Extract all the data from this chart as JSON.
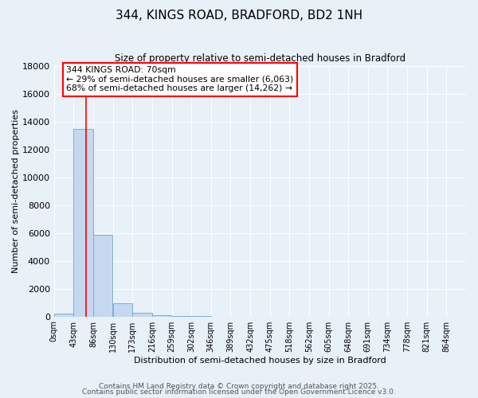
{
  "title": "344, KINGS ROAD, BRADFORD, BD2 1NH",
  "subtitle": "Size of property relative to semi-detached houses in Bradford",
  "xlabel": "Distribution of semi-detached houses by size in Bradford",
  "ylabel": "Number of semi-detached properties",
  "bar_labels": [
    "0sqm",
    "43sqm",
    "86sqm",
    "130sqm",
    "173sqm",
    "216sqm",
    "259sqm",
    "302sqm",
    "346sqm",
    "389sqm",
    "432sqm",
    "475sqm",
    "518sqm",
    "562sqm",
    "605sqm",
    "648sqm",
    "691sqm",
    "734sqm",
    "778sqm",
    "821sqm",
    "864sqm"
  ],
  "bar_values": [
    200,
    13500,
    5900,
    950,
    280,
    100,
    50,
    50,
    0,
    0,
    0,
    0,
    0,
    0,
    0,
    0,
    0,
    0,
    0,
    0,
    0
  ],
  "bar_color": "#c5d8f0",
  "bar_edgecolor": "#7aafd4",
  "background_color": "#e8f0f8",
  "grid_color": "#ffffff",
  "vline_x": 70,
  "vline_color": "red",
  "ylim": [
    0,
    18000
  ],
  "yticks": [
    0,
    2000,
    4000,
    6000,
    8000,
    10000,
    12000,
    14000,
    16000,
    18000
  ],
  "annotation_text": "344 KINGS ROAD: 70sqm\n← 29% of semi-detached houses are smaller (6,063)\n68% of semi-detached houses are larger (14,262) →",
  "annotation_box_color": "white",
  "annotation_box_edgecolor": "red",
  "footer1": "Contains HM Land Registry data © Crown copyright and database right 2025.",
  "footer2": "Contains public sector information licensed under the Open Government Licence v3.0.",
  "bin_width": 43
}
